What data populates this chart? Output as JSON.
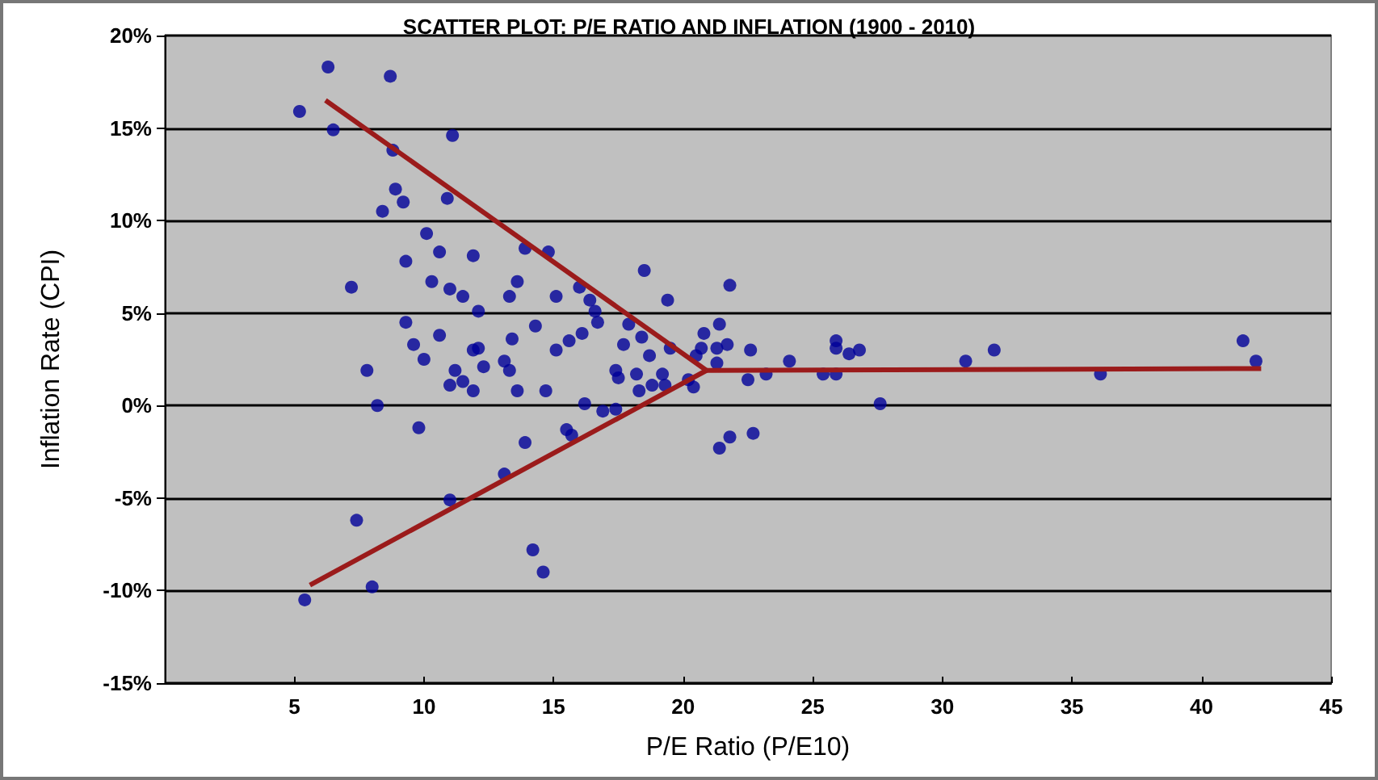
{
  "chart_data": {
    "type": "scatter",
    "title": "SCATTER PLOT: P/E RATIO AND INFLATION (1900 - 2010)",
    "xlabel": "P/E Ratio (P/E10)",
    "ylabel": "Inflation Rate (CPI)",
    "xlim": [
      0,
      45
    ],
    "xticks": [
      {
        "value": 0,
        "label": null
      },
      5,
      10,
      15,
      20,
      25,
      30,
      35,
      40,
      45
    ],
    "ylim": [
      -15,
      20
    ],
    "yticks": [
      {
        "value": -15,
        "label": "-15%"
      },
      {
        "value": -10,
        "label": "-10%"
      },
      {
        "value": -5,
        "label": "-5%"
      },
      {
        "value": 0,
        "label": "0%"
      },
      {
        "value": 5,
        "label": "5%"
      },
      {
        "value": 10,
        "label": "10%"
      },
      {
        "value": 15,
        "label": "15%"
      },
      {
        "value": 20,
        "label": "20%"
      }
    ],
    "grid": "y",
    "marker": "circle",
    "series": [
      {
        "color": "#000099",
        "x": [
          6.3,
          8.7,
          5.2,
          6.5,
          11.1,
          8.8,
          8.9,
          9.2,
          8.4,
          10.9,
          10.1,
          9.3,
          10.6,
          11.9,
          13.9,
          14.8,
          7.2,
          10.3,
          11.0,
          11.5,
          13.6,
          13.3,
          15.1,
          16.0,
          12.1,
          9.3,
          9.6,
          10.6,
          13.4,
          14.3,
          15.1,
          15.6,
          16.1,
          11.9,
          12.1,
          10.0,
          7.8,
          11.0,
          11.2,
          11.5,
          11.9,
          12.3,
          13.1,
          13.3,
          13.6,
          14.7,
          8.2,
          9.8,
          13.9,
          15.5,
          15.7,
          13.1,
          11.0,
          7.4,
          14.2,
          14.6,
          8.0,
          5.4,
          18.5,
          21.8,
          16.4,
          16.6,
          16.7,
          19.4,
          17.9,
          18.4,
          17.7,
          18.7,
          19.5,
          20.8,
          21.4,
          20.7,
          21.3,
          21.7,
          20.5,
          21.3,
          22.6,
          24.1,
          25.9,
          25.9,
          26.4,
          26.8,
          17.4,
          17.5,
          18.2,
          19.2,
          18.3,
          18.8,
          19.3,
          20.2,
          20.4,
          22.5,
          23.2,
          25.4,
          25.9,
          16.2,
          16.9,
          17.4,
          27.6,
          21.8,
          22.7,
          21.4,
          30.9,
          32.0,
          36.1,
          41.6,
          42.1
        ],
        "values": [
          18.3,
          17.8,
          15.9,
          14.9,
          14.6,
          13.8,
          11.7,
          11.0,
          10.5,
          11.2,
          9.3,
          7.8,
          8.3,
          8.1,
          8.5,
          8.3,
          6.4,
          6.7,
          6.3,
          5.9,
          6.7,
          5.9,
          5.9,
          6.4,
          5.1,
          4.5,
          3.3,
          3.8,
          3.6,
          4.3,
          3.0,
          3.5,
          3.9,
          3.0,
          3.1,
          2.5,
          1.9,
          1.1,
          1.9,
          1.3,
          0.8,
          2.1,
          2.4,
          1.9,
          0.8,
          0.8,
          0.0,
          -1.2,
          -2.0,
          -1.3,
          -1.6,
          -3.7,
          -5.1,
          -6.2,
          -7.8,
          -9.0,
          -9.8,
          -10.5,
          7.3,
          6.5,
          5.7,
          5.1,
          4.5,
          5.7,
          4.4,
          3.7,
          3.3,
          2.7,
          3.1,
          3.9,
          4.4,
          3.1,
          3.1,
          3.3,
          2.7,
          2.3,
          3.0,
          2.4,
          3.5,
          3.1,
          2.8,
          3.0,
          1.9,
          1.5,
          1.7,
          1.7,
          0.8,
          1.1,
          1.1,
          1.4,
          1.0,
          1.4,
          1.7,
          1.7,
          1.7,
          0.1,
          -0.3,
          -0.2,
          0.1,
          -1.7,
          -1.5,
          -2.3,
          2.4,
          3.0,
          1.7,
          3.5,
          2.4
        ]
      },
      {
        "type": "line",
        "color": "#9b1b1b",
        "marker": "none",
        "x": [
          6.2,
          20.9
        ],
        "values": [
          16.5,
          1.9
        ]
      },
      {
        "type": "line",
        "color": "#9b1b1b",
        "marker": "none",
        "x": [
          5.6,
          20.9
        ],
        "values": [
          -9.7,
          1.9
        ]
      },
      {
        "type": "line",
        "color": "#9b1b1b",
        "marker": "none",
        "x": [
          20.9,
          42.3
        ],
        "values": [
          1.9,
          2.0
        ]
      }
    ]
  }
}
